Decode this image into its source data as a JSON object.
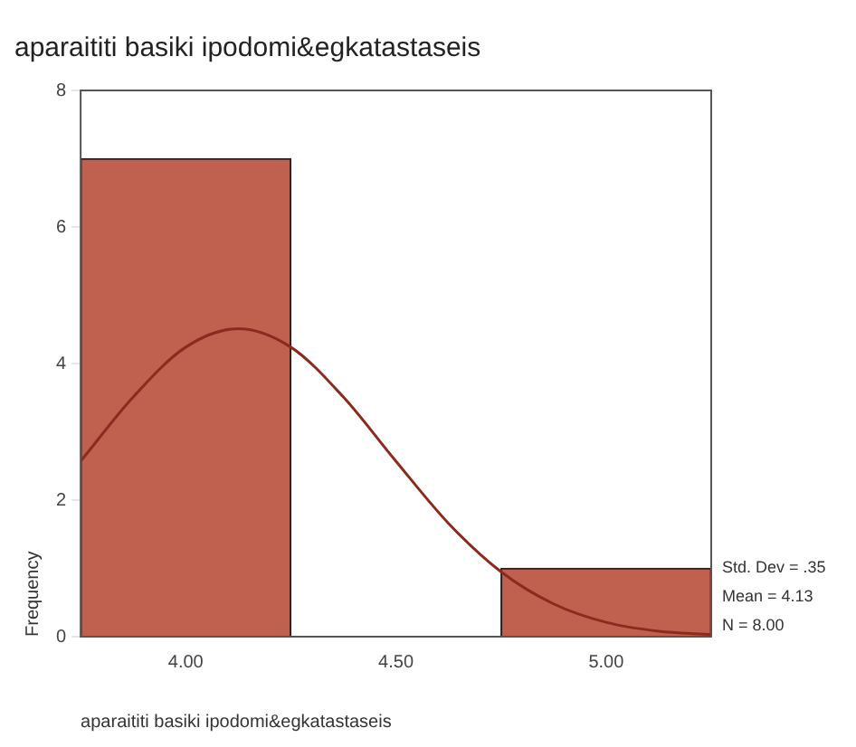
{
  "chart_data": {
    "type": "histogram",
    "title": "aparaititi basiki ipodomi&egkatastaseis",
    "xlabel": "aparaititi basiki ipodomi&egkatastaseis",
    "ylabel": "Frequency",
    "bins": [
      3.75,
      4.25,
      4.75,
      5.25
    ],
    "values": [
      7,
      0,
      1
    ],
    "color": "#c0604f",
    "series": [
      {
        "type": "line",
        "color": "#8b2a1e",
        "x": [
          3.75,
          3.875,
          4.0,
          4.125,
          4.25,
          4.375,
          4.5,
          4.625,
          4.75,
          4.875,
          5.0,
          5.125,
          5.25
        ],
        "values": [
          2.57,
          3.51,
          4.24,
          4.51,
          4.24,
          3.51,
          2.57,
          1.66,
          0.95,
          0.48,
          0.21,
          0.08,
          0.03
        ]
      }
    ],
    "xlim": [
      3.75,
      5.25
    ],
    "xticks": [
      {
        "value": 4,
        "label": "4.00"
      },
      {
        "value": 4.5,
        "label": "4.50"
      },
      {
        "value": 5,
        "label": "5.00"
      }
    ],
    "ylim": [
      0,
      8
    ],
    "yticks": [
      0,
      2,
      4,
      6,
      8
    ],
    "grid": false,
    "legend": false,
    "annotations": [
      "Std. Dev = .35",
      "Mean = 4.13",
      "N = 8.00"
    ]
  }
}
